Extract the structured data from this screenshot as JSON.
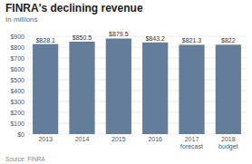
{
  "chart_data": {
    "type": "bar",
    "title": "FINRA's declining revenue",
    "subtitle": "In millions",
    "source": "Source: FINRA",
    "categories": [
      "2013",
      "2014",
      "2015",
      "2016",
      "2017\nforecast",
      "2018\nbudget"
    ],
    "values": [
      828.1,
      850.5,
      879.5,
      843.2,
      821.3,
      822
    ],
    "value_labels": [
      "$828.1",
      "$850.5",
      "$879.5",
      "$843.2",
      "$821.3",
      "$822"
    ],
    "data_labels": true,
    "color": "#647d9b",
    "ylim": [
      0,
      900
    ],
    "yticks": [
      {
        "value": 0,
        "label": "$0"
      },
      {
        "value": 100,
        "label": "$100"
      },
      {
        "value": 200,
        "label": "$200"
      },
      {
        "value": 300,
        "label": "$300"
      },
      {
        "value": 400,
        "label": "$400"
      },
      {
        "value": 500,
        "label": "$500"
      },
      {
        "value": 600,
        "label": "$600"
      },
      {
        "value": 700,
        "label": "$700"
      },
      {
        "value": 800,
        "label": "$800"
      },
      {
        "value": 900,
        "label": "$900"
      }
    ],
    "grid": true
  }
}
